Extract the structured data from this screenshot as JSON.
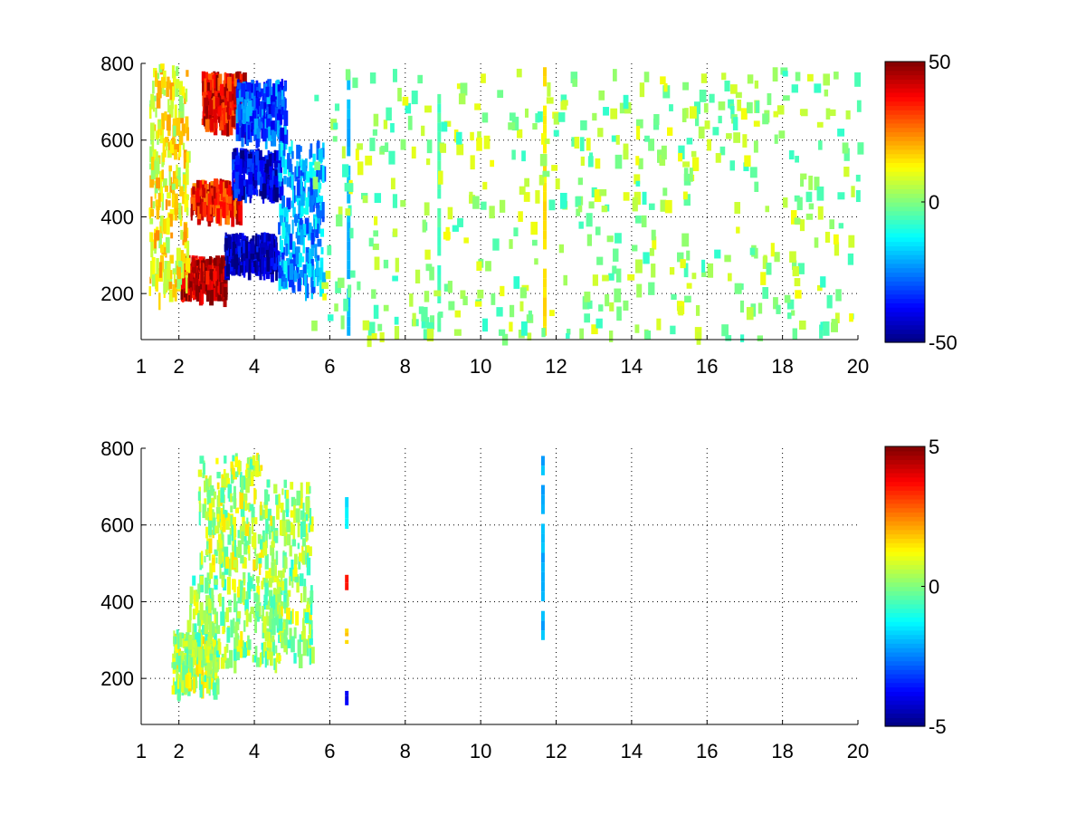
{
  "chart_data": [
    {
      "type": "heatmap",
      "title": "",
      "xlabel": "",
      "ylabel": "",
      "xlim": [
        1,
        20
      ],
      "ylim": [
        80,
        800
      ],
      "xticks": [
        1,
        2,
        4,
        6,
        8,
        10,
        12,
        14,
        16,
        18,
        20
      ],
      "xtick_labels": [
        "1",
        "2",
        "4",
        "6",
        "8",
        "10",
        "12",
        "14",
        "16",
        "18",
        "20"
      ],
      "yticks": [
        200,
        400,
        600,
        800
      ],
      "ytick_labels": [
        "200",
        "400",
        "600",
        "800"
      ],
      "grid": true,
      "colormap": "jet",
      "clim": [
        -50,
        50
      ],
      "colorbar_ticks": [
        -50,
        0,
        50
      ],
      "colorbar_tick_labels": [
        "-50",
        "0",
        "50"
      ],
      "regions": [
        {
          "x": [
            2.0,
            3.2
          ],
          "y": [
            210,
            300
          ],
          "value": 45
        },
        {
          "x": [
            2.3,
            3.6
          ],
          "y": [
            420,
            500
          ],
          "value": 35
        },
        {
          "x": [
            2.6,
            3.7
          ],
          "y": [
            650,
            780
          ],
          "value": 38
        },
        {
          "x": [
            3.2,
            4.6
          ],
          "y": [
            270,
            360
          ],
          "value": -45
        },
        {
          "x": [
            3.4,
            4.7
          ],
          "y": [
            470,
            580
          ],
          "value": -40
        },
        {
          "x": [
            3.5,
            4.8
          ],
          "y": [
            620,
            760
          ],
          "value": -30
        },
        {
          "x": [
            1.2,
            2.2
          ],
          "y": [
            200,
            800
          ],
          "value": 12
        },
        {
          "x": [
            4.6,
            5.8
          ],
          "y": [
            220,
            600
          ],
          "value": -22
        }
      ],
      "stripes": [
        {
          "x": 6.5,
          "y": [
            90,
            780
          ],
          "value": -20
        },
        {
          "x": 11.7,
          "y": [
            90,
            790
          ],
          "value": 15
        },
        {
          "x": 8.9,
          "y": [
            100,
            720
          ],
          "value": -5
        }
      ],
      "scatter_range": {
        "x": [
          5.5,
          20
        ],
        "y": [
          90,
          790
        ],
        "value_range": [
          -8,
          12
        ]
      }
    },
    {
      "type": "heatmap",
      "title": "",
      "xlabel": "",
      "ylabel": "",
      "xlim": [
        1,
        20
      ],
      "ylim": [
        80,
        800
      ],
      "xticks": [
        1,
        2,
        4,
        6,
        8,
        10,
        12,
        14,
        16,
        18,
        20
      ],
      "xtick_labels": [
        "1",
        "2",
        "4",
        "6",
        "8",
        "10",
        "12",
        "14",
        "16",
        "18",
        "20"
      ],
      "yticks": [
        200,
        400,
        600,
        800
      ],
      "ytick_labels": [
        "200",
        "400",
        "600",
        "800"
      ],
      "grid": true,
      "colormap": "jet",
      "clim": [
        -5,
        5
      ],
      "colorbar_ticks": [
        -5,
        0,
        5
      ],
      "colorbar_tick_labels": [
        "-5",
        "0",
        "5"
      ],
      "regions": [
        {
          "x": [
            1.8,
            3.0
          ],
          "y": [
            180,
            330
          ],
          "value": 0.5
        },
        {
          "x": [
            2.2,
            4.8
          ],
          "y": [
            250,
            480
          ],
          "value": 0.2
        },
        {
          "x": [
            2.5,
            4.2
          ],
          "y": [
            500,
            790
          ],
          "value": 0.4
        },
        {
          "x": [
            4.2,
            5.5
          ],
          "y": [
            260,
            720
          ],
          "value": 0.3
        }
      ],
      "stripes": [
        {
          "x": 6.45,
          "y": [
            130,
            180
          ],
          "value": -4
        },
        {
          "x": 6.45,
          "y": [
            290,
            330
          ],
          "value": 1.8
        },
        {
          "x": 6.45,
          "y": [
            430,
            470
          ],
          "value": 3.5
        },
        {
          "x": 6.45,
          "y": [
            590,
            700
          ],
          "value": -1.5
        },
        {
          "x": 11.65,
          "y": [
            300,
            780
          ],
          "value": -2
        }
      ]
    }
  ]
}
